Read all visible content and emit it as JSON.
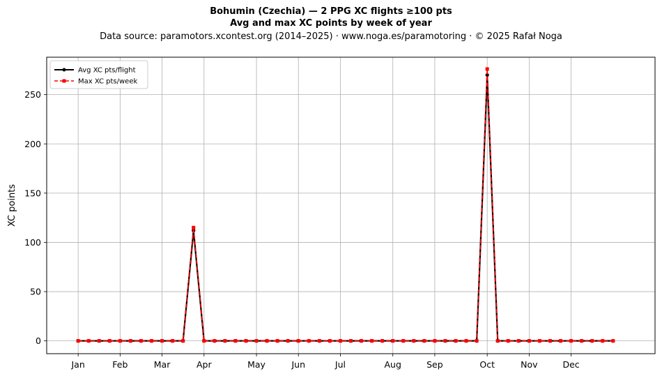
{
  "chart_data": {
    "type": "line",
    "title": "Bohumin (Czechia)  —  2 PPG XC flights ≥100 pts",
    "subtitle": "Avg and max XC points by week of year",
    "source": "Data source: paramotors.xcontest.org (2014–2025)  ·  www.noga.es/paramotoring  ·  © 2025 Rafał Noga",
    "xlabel": "",
    "ylabel": "XC points",
    "x": [
      1,
      2,
      3,
      4,
      5,
      6,
      7,
      8,
      9,
      10,
      11,
      12,
      13,
      14,
      15,
      16,
      17,
      18,
      19,
      20,
      21,
      22,
      23,
      24,
      25,
      26,
      27,
      28,
      29,
      30,
      31,
      32,
      33,
      34,
      35,
      36,
      37,
      38,
      39,
      40,
      41,
      42,
      43,
      44,
      45,
      46,
      47,
      48,
      49,
      50,
      51,
      52
    ],
    "xlim": [
      -2,
      56
    ],
    "ylim": [
      -13,
      288
    ],
    "yticks": [
      0,
      50,
      100,
      150,
      200,
      250
    ],
    "xticks": [
      {
        "week": 1,
        "label": "Jan"
      },
      {
        "week": 5,
        "label": "Feb"
      },
      {
        "week": 9,
        "label": "Mar"
      },
      {
        "week": 13,
        "label": "Apr"
      },
      {
        "week": 18,
        "label": "May"
      },
      {
        "week": 22,
        "label": "Jun"
      },
      {
        "week": 26,
        "label": "Jul"
      },
      {
        "week": 31,
        "label": "Aug"
      },
      {
        "week": 35,
        "label": "Sep"
      },
      {
        "week": 40,
        "label": "Oct"
      },
      {
        "week": 44,
        "label": "Nov"
      },
      {
        "week": 48,
        "label": "Dec"
      }
    ],
    "grid": true,
    "legend_position": "top-left",
    "series": [
      {
        "name": "Avg XC pts/flight",
        "color": "#000000",
        "style": "solid",
        "marker": "circle",
        "values": [
          0,
          0,
          0,
          0,
          0,
          0,
          0,
          0,
          0,
          0,
          0,
          112,
          0,
          0,
          0,
          0,
          0,
          0,
          0,
          0,
          0,
          0,
          0,
          0,
          0,
          0,
          0,
          0,
          0,
          0,
          0,
          0,
          0,
          0,
          0,
          0,
          0,
          0,
          0,
          270,
          0,
          0,
          0,
          0,
          0,
          0,
          0,
          0,
          0,
          0,
          0,
          0
        ]
      },
      {
        "name": "Max XC pts/week",
        "color": "#ff0000",
        "style": "dashed",
        "marker": "square",
        "values": [
          0,
          0,
          0,
          0,
          0,
          0,
          0,
          0,
          0,
          0,
          0,
          115,
          0,
          0,
          0,
          0,
          0,
          0,
          0,
          0,
          0,
          0,
          0,
          0,
          0,
          0,
          0,
          0,
          0,
          0,
          0,
          0,
          0,
          0,
          0,
          0,
          0,
          0,
          0,
          276,
          0,
          0,
          0,
          0,
          0,
          0,
          0,
          0,
          0,
          0,
          0,
          0
        ]
      }
    ]
  }
}
